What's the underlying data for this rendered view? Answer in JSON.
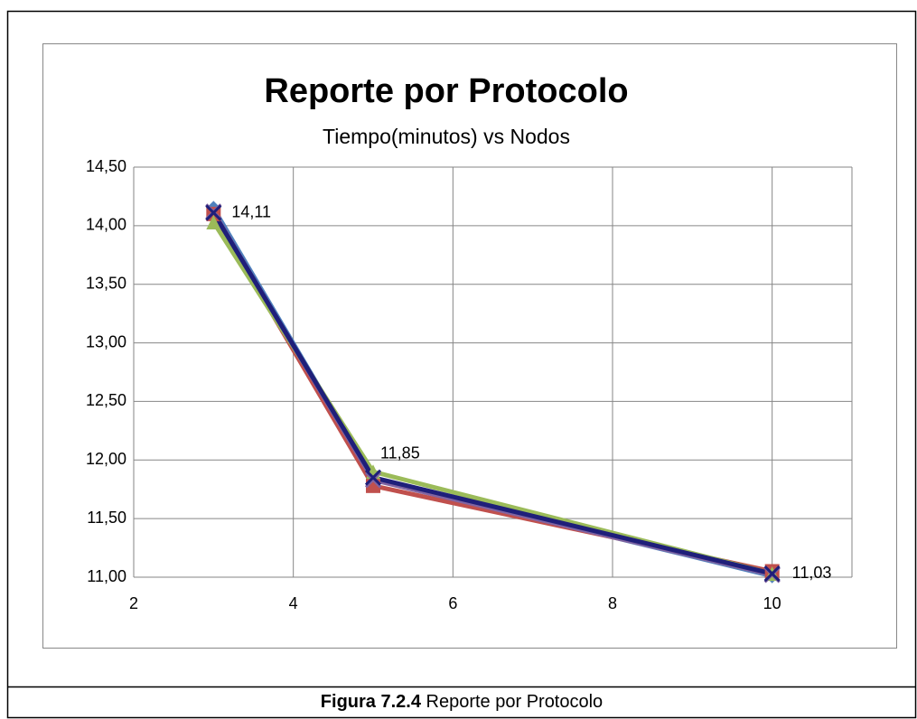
{
  "chart_data": {
    "type": "line",
    "title": "Reporte por Protocolo",
    "subtitle": "Tiempo(minutos) vs Nodos",
    "x": [
      3,
      5,
      10
    ],
    "xlim": [
      2,
      11
    ],
    "xticks": [
      2,
      4,
      6,
      8,
      10
    ],
    "ylim": [
      11,
      14.5
    ],
    "yticks": [
      {
        "value": 11,
        "label": "11,00"
      },
      {
        "value": 11.5,
        "label": "11,50"
      },
      {
        "value": 12,
        "label": "12,00"
      },
      {
        "value": 12.5,
        "label": "12,50"
      },
      {
        "value": 13,
        "label": "13,00"
      },
      {
        "value": 13.5,
        "label": "13,50"
      },
      {
        "value": 14,
        "label": "14,00"
      },
      {
        "value": 14.5,
        "label": "14,50"
      }
    ],
    "grid": true,
    "series": [
      {
        "color": "#4f81bd",
        "marker": "diamond",
        "values": [
          14.15,
          11.84,
          11.01
        ]
      },
      {
        "color": "#c0504d",
        "marker": "square",
        "values": [
          14.1,
          11.78,
          11.05
        ]
      },
      {
        "color": "#9bbb59",
        "marker": "triangle",
        "values": [
          14.03,
          11.9,
          11.03
        ]
      },
      {
        "color": "#8064a2",
        "marker": "x",
        "values": [
          14.12,
          11.83,
          11.02
        ]
      },
      {
        "color": "#1f1f7a",
        "marker": "x",
        "values": [
          14.11,
          11.85,
          11.03
        ],
        "value_labels": [
          "14,11",
          "11,85",
          "11,03"
        ]
      }
    ],
    "caption": {
      "label": "Figura 7.2.4",
      "text": "Reporte por Protocolo"
    }
  }
}
